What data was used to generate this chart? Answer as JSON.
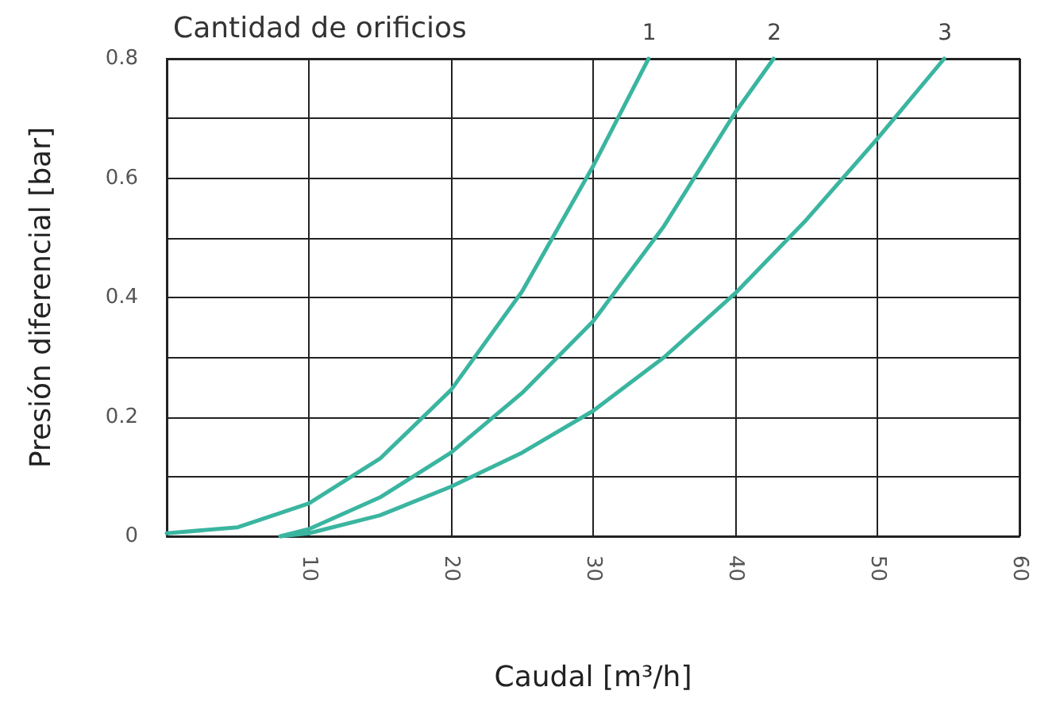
{
  "chart_data": {
    "type": "line",
    "legend_title": "Cantidad de orificios",
    "xlabel": "Caudal [m³/h]",
    "ylabel": "Presión diferencial [bar]",
    "xlim": [
      0,
      60
    ],
    "xticks": [
      10,
      20,
      30,
      40,
      50,
      60
    ],
    "ylim": [
      0,
      0.8
    ],
    "yticks": [
      0,
      {
        "value": 0.1,
        "label": null
      },
      0.2,
      {
        "value": 0.3,
        "label": null
      },
      0.4,
      {
        "value": 0.5,
        "label": null
      },
      0.6,
      {
        "value": 0.7,
        "label": null
      },
      0.8
    ],
    "grid": true,
    "marker": "none",
    "line_style": "solid",
    "series": [
      {
        "name": "1",
        "color": "#3ab5a0",
        "x": [
          0,
          5,
          10,
          15,
          20,
          25,
          30,
          33.9
        ],
        "values": [
          0.005,
          0.015,
          0.055,
          0.13,
          0.245,
          0.41,
          0.62,
          0.8
        ]
      },
      {
        "name": "2",
        "color": "#3ab5a0",
        "x": [
          8,
          10,
          15,
          20,
          25,
          30,
          35,
          40,
          42.7
        ],
        "values": [
          0,
          0.012,
          0.065,
          0.14,
          0.24,
          0.36,
          0.52,
          0.71,
          0.8
        ]
      },
      {
        "name": "3",
        "color": "#3ab5a0",
        "x": [
          8,
          10,
          15,
          20,
          25,
          30,
          35,
          40,
          45,
          50,
          54.7
        ],
        "values": [
          0,
          0.005,
          0.035,
          0.083,
          0.14,
          0.21,
          0.3,
          0.407,
          0.53,
          0.666,
          0.8
        ]
      }
    ]
  }
}
